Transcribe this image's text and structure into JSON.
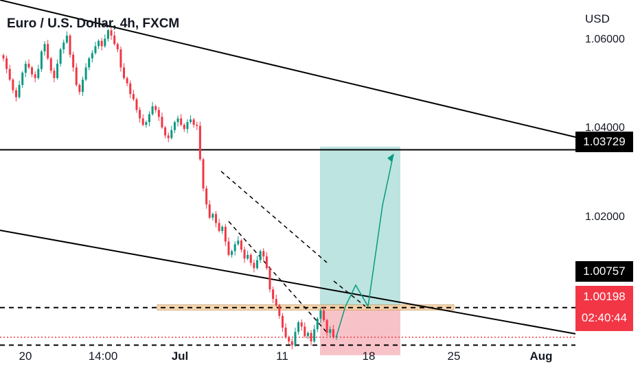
{
  "header": {
    "title": "Euro / U.S. Dollar, 4h, FXCM",
    "currency": "USD"
  },
  "colors": {
    "up": "#089981",
    "down": "#f23645",
    "profit_zone": "#b2dfdb",
    "loss_zone": "#f7bcc2",
    "support_zone": "#f5cfa0",
    "current_price_line": "#f23645"
  },
  "price_labels": {
    "resistance": "1.03729",
    "support": "1.00757",
    "current": {
      "price": "1.00198",
      "countdown": "02:40:44"
    }
  },
  "chart_data": {
    "type": "candlestick",
    "title": "Euro / U.S. Dollar, 4h, FXCM",
    "ylabel": "USD",
    "ylim": [
      0.9945,
      1.0655
    ],
    "y_ticks": [
      "1.06000",
      "1.04000",
      "1.02000"
    ],
    "x_ticks": [
      {
        "label": "20",
        "bold": false
      },
      {
        "label": "14:00",
        "bold": false
      },
      {
        "label": "Jul",
        "bold": true
      },
      {
        "label": "11",
        "bold": false
      },
      {
        "label": "18",
        "bold": false
      },
      {
        "label": "25",
        "bold": false
      },
      {
        "label": "Aug",
        "bold": true
      }
    ],
    "horizontal_levels": [
      {
        "price": 1.03729,
        "style": "solid"
      },
      {
        "price": 1.00757,
        "style": "dashed"
      },
      {
        "price": 1.0005,
        "style": "dashed"
      },
      {
        "price": 1.00198,
        "style": "dotted"
      }
    ],
    "support_zone": [
      1.0071,
      1.0081
    ],
    "position": {
      "entry": 1.0078,
      "target": 1.0379,
      "stop": 0.9986
    },
    "projected_path": [
      1.0022,
      1.0078,
      1.0118,
      1.0078,
      1.0268,
      1.0365
    ],
    "close_path": [
      1.0545,
      1.0525,
      1.0505,
      1.0485,
      1.0472,
      1.0495,
      1.0518,
      1.0535,
      1.0528,
      1.0515,
      1.0508,
      1.0525,
      1.0558,
      1.0572,
      1.0545,
      1.0522,
      1.0508,
      1.0535,
      1.0562,
      1.0575,
      1.0588,
      1.0552,
      1.0528,
      1.0495,
      1.0482,
      1.0505,
      1.0528,
      1.0545,
      1.0555,
      1.0568,
      1.0578,
      1.0568,
      1.0582,
      1.0598,
      1.0588,
      1.0572,
      1.0562,
      1.0528,
      1.0508,
      1.0498,
      1.0478,
      1.0468,
      1.0448,
      1.0432,
      1.042,
      1.0425,
      1.044,
      1.0455,
      1.0448,
      1.0435,
      1.0415,
      1.04,
      1.0395,
      1.041,
      1.0425,
      1.0432,
      1.042,
      1.0412,
      1.0425,
      1.043,
      1.042,
      1.0418,
      1.0355,
      1.03,
      1.027,
      1.0245,
      1.0252,
      1.0235,
      1.022,
      1.0228,
      1.02,
      1.0175,
      1.0182,
      1.0195,
      1.0202,
      1.0185,
      1.0168,
      1.0175,
      1.016,
      1.015,
      1.0165,
      1.0182,
      1.0172,
      1.015,
      1.011,
      1.0092,
      1.008,
      1.006,
      1.0038,
      1.002,
      1.0012,
      1.0005,
      1.003,
      1.0048,
      1.004,
      1.0022,
      1.0028,
      1.0012,
      1.0035,
      1.0055,
      1.007,
      1.0052,
      1.0028,
      1.0035,
      1.002,
      1.0022
    ]
  }
}
